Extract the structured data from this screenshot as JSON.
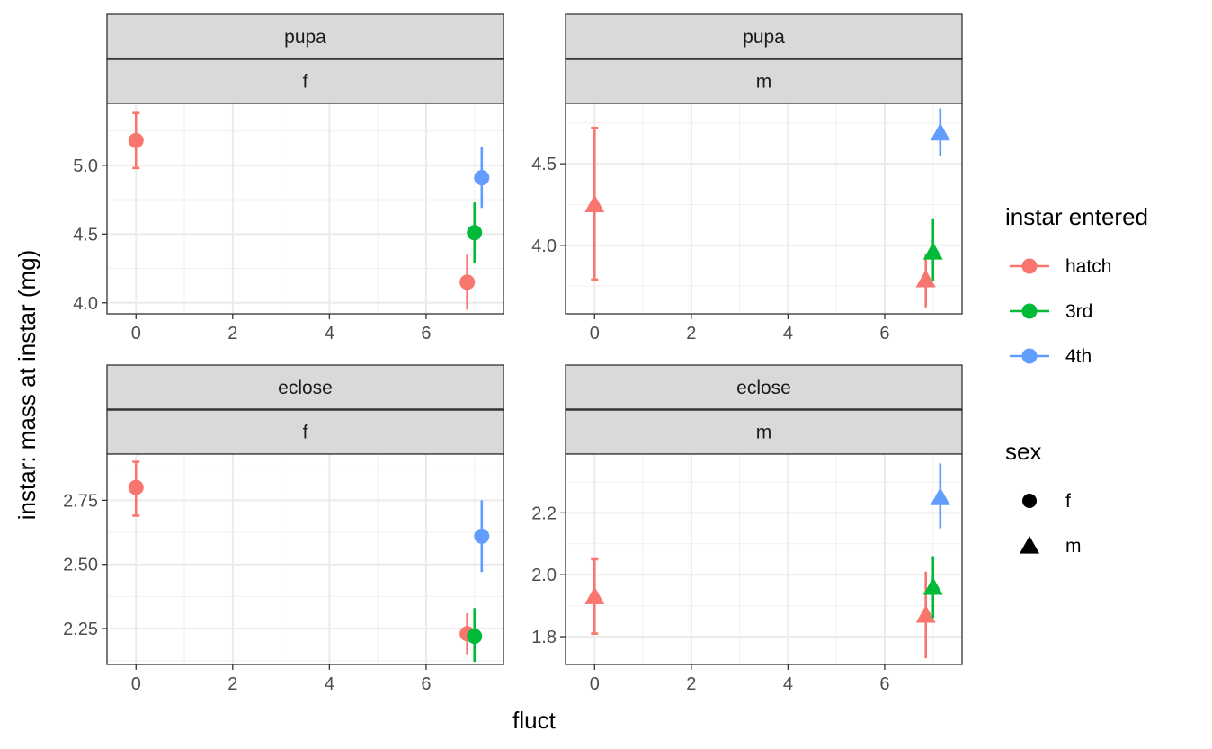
{
  "colors": {
    "hatch": "#F8766D",
    "3rd": "#00BA38",
    "4th": "#619CFF"
  },
  "chart_data": {
    "type": "scatter",
    "subtype": "pointrange",
    "xlabel": "fluct",
    "ylabel": "instar: mass at instar (mg)",
    "x_ticks": [
      0,
      2,
      4,
      6
    ],
    "xlim": [
      -0.6,
      7.6
    ],
    "grid": true,
    "legend_placement": "right",
    "legend": {
      "color_title": "instar entered",
      "color_entries": [
        "hatch",
        "3rd",
        "4th"
      ],
      "shape_title": "sex",
      "shape_entries": [
        "f",
        "m"
      ]
    },
    "panels": [
      {
        "strip_top": "pupa",
        "strip_bottom": "f",
        "shape": "circle",
        "ylim": [
          3.92,
          5.45
        ],
        "y_ticks": [
          4.0,
          4.5,
          5.0
        ],
        "y_tick_labels": [
          "4.0",
          "4.5",
          "5.0"
        ],
        "points": [
          {
            "series": "hatch",
            "x": 0,
            "y": 5.18,
            "ymin": 4.98,
            "ymax": 5.38,
            "caps": true
          },
          {
            "series": "hatch",
            "x": 6.85,
            "y": 4.15,
            "ymin": 3.95,
            "ymax": 4.35,
            "caps": false
          },
          {
            "series": "3rd",
            "x": 7.0,
            "y": 4.51,
            "ymin": 4.29,
            "ymax": 4.73,
            "caps": false
          },
          {
            "series": "4th",
            "x": 7.15,
            "y": 4.91,
            "ymin": 4.69,
            "ymax": 5.13,
            "caps": false
          }
        ]
      },
      {
        "strip_top": "pupa",
        "strip_bottom": "m",
        "shape": "triangle",
        "ylim": [
          3.58,
          4.87
        ],
        "y_ticks": [
          4.0,
          4.5
        ],
        "y_tick_labels": [
          "4.0",
          "4.5"
        ],
        "points": [
          {
            "series": "hatch",
            "x": 0,
            "y": 4.25,
            "ymin": 3.79,
            "ymax": 4.72,
            "caps": true
          },
          {
            "series": "hatch",
            "x": 6.85,
            "y": 3.79,
            "ymin": 3.62,
            "ymax": 3.95,
            "caps": false
          },
          {
            "series": "3rd",
            "x": 7.0,
            "y": 3.96,
            "ymin": 3.78,
            "ymax": 4.16,
            "caps": false
          },
          {
            "series": "4th",
            "x": 7.15,
            "y": 4.69,
            "ymin": 4.55,
            "ymax": 4.84,
            "caps": false
          }
        ]
      },
      {
        "strip_top": "eclose",
        "strip_bottom": "f",
        "shape": "circle",
        "ylim": [
          2.11,
          2.93
        ],
        "y_ticks": [
          2.25,
          2.5,
          2.75
        ],
        "y_tick_labels": [
          "2.25",
          "2.50",
          "2.75"
        ],
        "points": [
          {
            "series": "hatch",
            "x": 0,
            "y": 2.8,
            "ymin": 2.69,
            "ymax": 2.9,
            "caps": true
          },
          {
            "series": "hatch",
            "x": 6.85,
            "y": 2.23,
            "ymin": 2.15,
            "ymax": 2.31,
            "caps": false
          },
          {
            "series": "3rd",
            "x": 7.0,
            "y": 2.22,
            "ymin": 2.12,
            "ymax": 2.33,
            "caps": false
          },
          {
            "series": "4th",
            "x": 7.15,
            "y": 2.61,
            "ymin": 2.47,
            "ymax": 2.75,
            "caps": false
          }
        ]
      },
      {
        "strip_top": "eclose",
        "strip_bottom": "m",
        "shape": "triangle",
        "ylim": [
          1.71,
          2.39
        ],
        "y_ticks": [
          1.8,
          2.0,
          2.2
        ],
        "y_tick_labels": [
          "1.8",
          "2.0",
          "2.2"
        ],
        "points": [
          {
            "series": "hatch",
            "x": 0,
            "y": 1.93,
            "ymin": 1.81,
            "ymax": 2.05,
            "caps": true
          },
          {
            "series": "hatch",
            "x": 6.85,
            "y": 1.87,
            "ymin": 1.73,
            "ymax": 2.01,
            "caps": false
          },
          {
            "series": "3rd",
            "x": 7.0,
            "y": 1.96,
            "ymin": 1.86,
            "ymax": 2.06,
            "caps": false
          },
          {
            "series": "4th",
            "x": 7.15,
            "y": 2.25,
            "ymin": 2.15,
            "ymax": 2.36,
            "caps": false
          }
        ]
      }
    ]
  }
}
